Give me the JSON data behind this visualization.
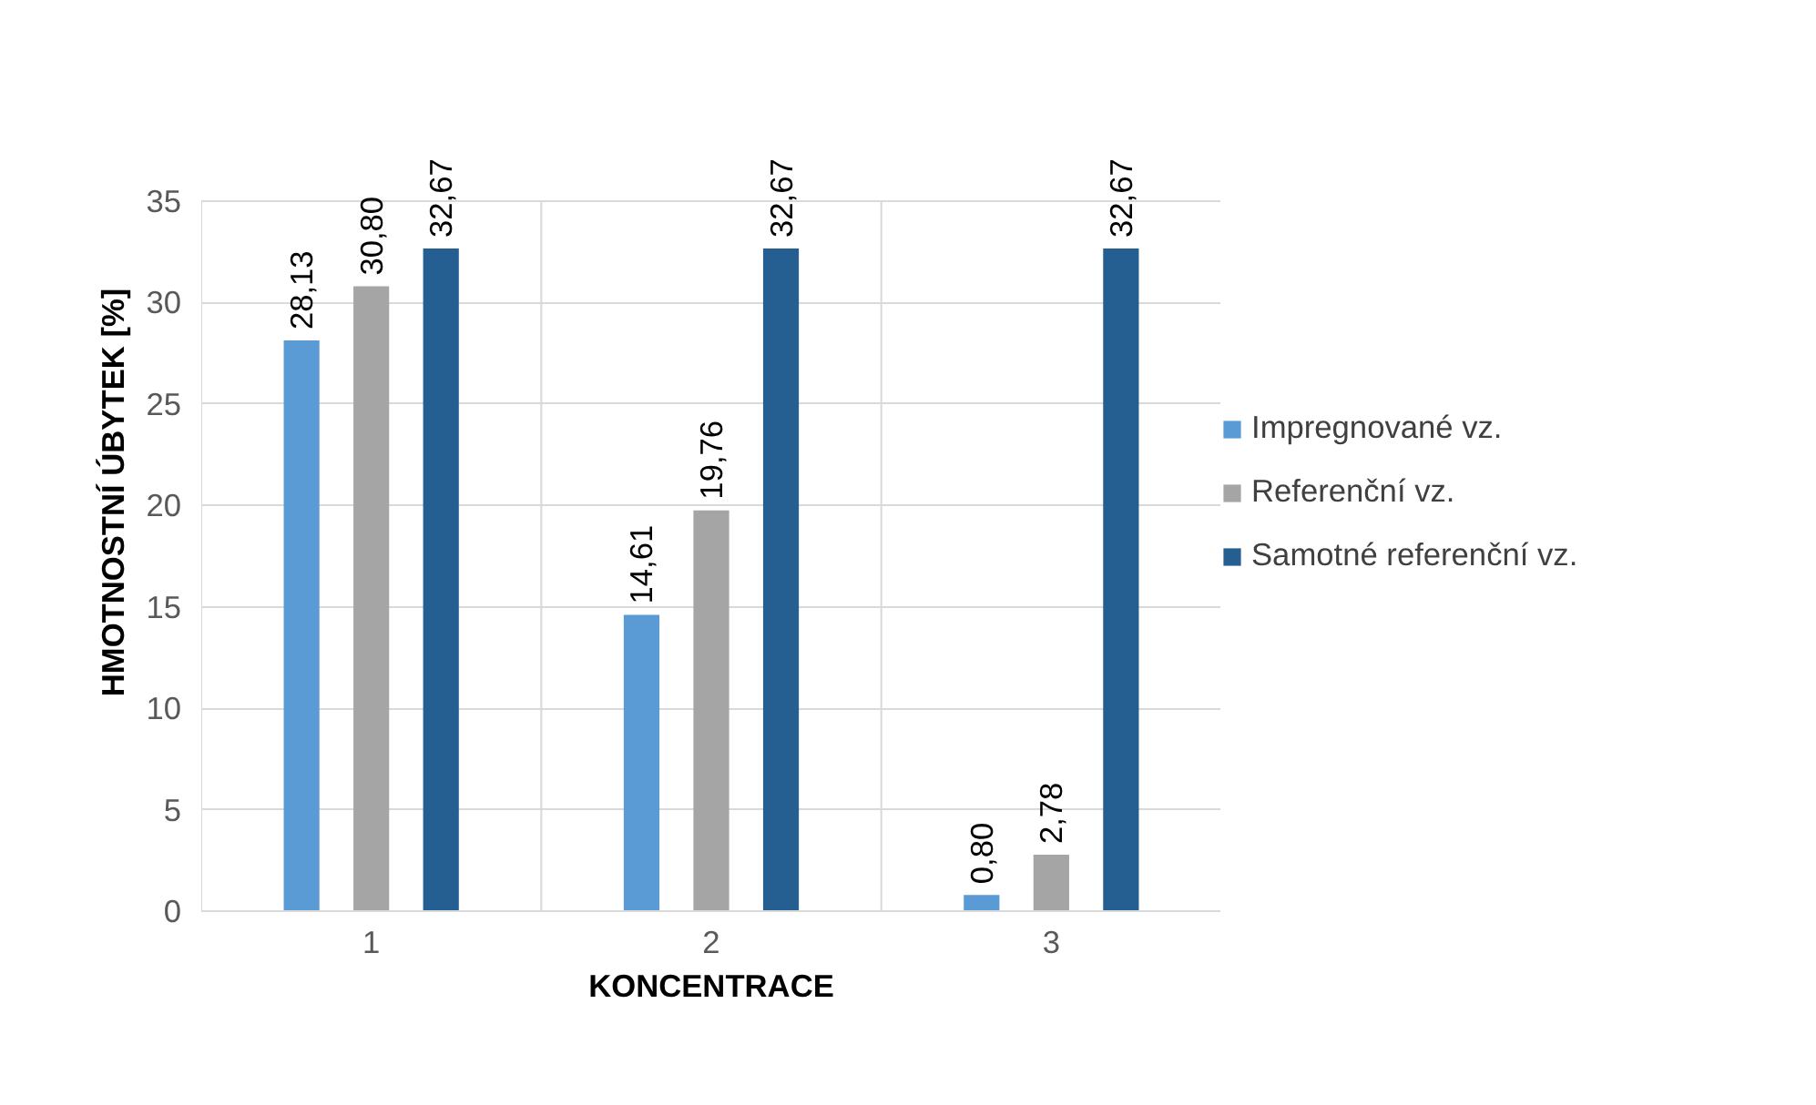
{
  "chart_data": {
    "type": "bar",
    "xlabel": "KONCENTRACE",
    "ylabel": "HMOTNOSTNÍ ÚBYTEK [%]",
    "categories": [
      "1",
      "2",
      "3"
    ],
    "series": [
      {
        "name": "Impregnované vz.",
        "color": "#5b9bd5",
        "values": [
          28.13,
          14.61,
          0.8
        ],
        "value_labels": [
          "28,13",
          "14,61",
          "0,80"
        ]
      },
      {
        "name": "Referenční vz.",
        "color": "#a5a5a5",
        "values": [
          30.8,
          19.76,
          2.78
        ],
        "value_labels": [
          "30,80",
          "19,76",
          "2,78"
        ]
      },
      {
        "name": "Samotné referenční vz.",
        "color": "#255e91",
        "values": [
          32.67,
          32.67,
          32.67
        ],
        "value_labels": [
          "32,67",
          "32,67",
          "32,67"
        ]
      }
    ],
    "ylim": [
      0,
      35
    ],
    "yticks": [
      0,
      5,
      10,
      15,
      20,
      25,
      30,
      35
    ],
    "grid": true,
    "legend": "right"
  }
}
